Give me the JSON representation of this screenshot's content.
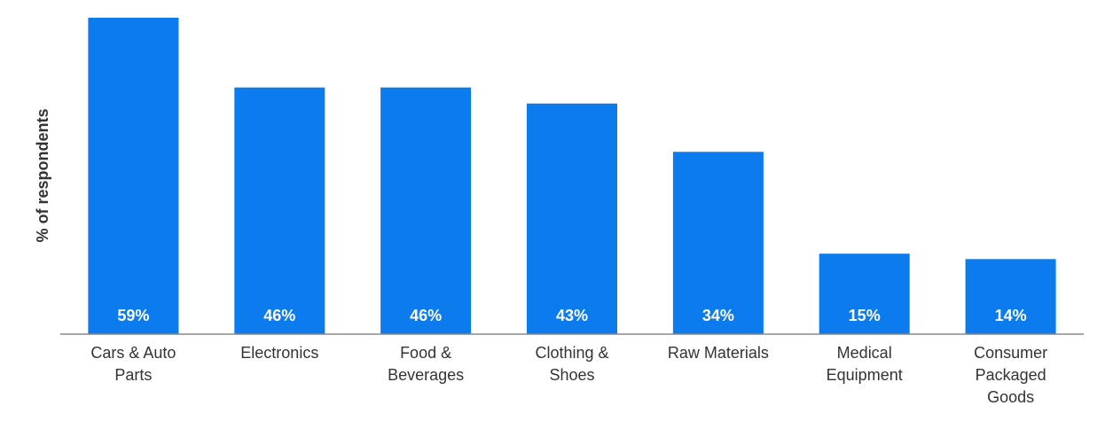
{
  "chart_data": {
    "type": "bar",
    "ylabel": "% of respondents",
    "xlabel": "",
    "title": "",
    "categories": [
      [
        "Cars & Auto",
        "Parts"
      ],
      [
        "Electronics"
      ],
      [
        "Food &",
        "Beverages"
      ],
      [
        "Clothing &",
        "Shoes"
      ],
      [
        "Raw Materials"
      ],
      [
        "Medical",
        "Equipment"
      ],
      [
        "Consumer",
        "Packaged",
        "Goods"
      ]
    ],
    "values": [
      59,
      46,
      46,
      43,
      34,
      15,
      14
    ],
    "value_labels": [
      "59%",
      "46%",
      "46%",
      "43%",
      "34%",
      "15%",
      "14%"
    ],
    "ylim": [
      0,
      59
    ],
    "grid": false,
    "legend": "none",
    "bar_color": "#0B7BEE",
    "baseline_color": "#888888"
  }
}
